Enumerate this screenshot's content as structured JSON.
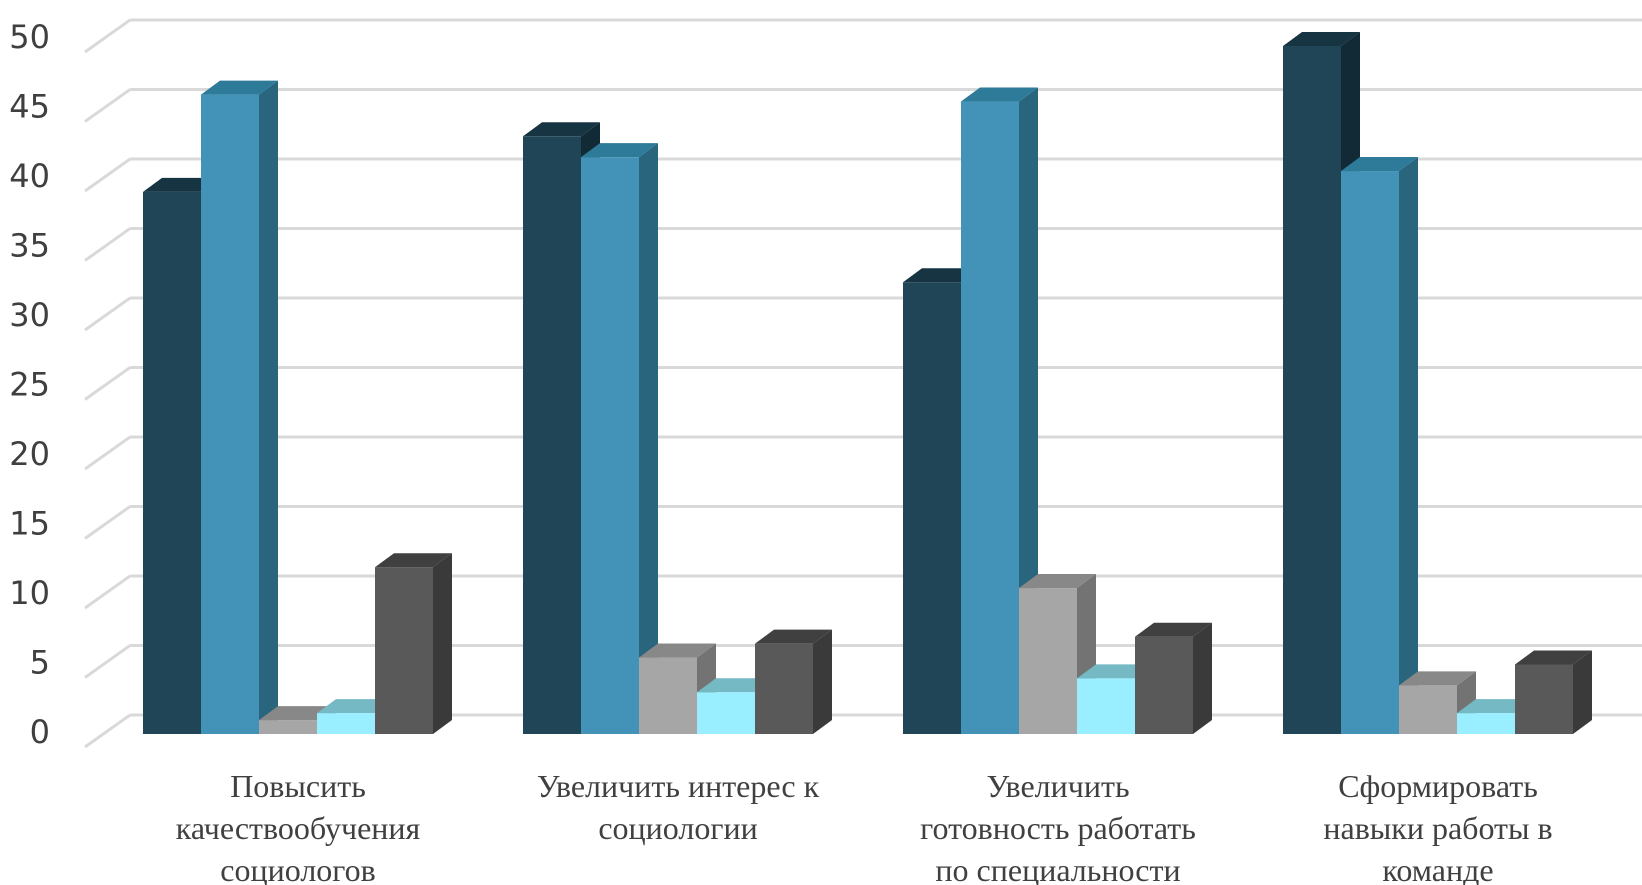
{
  "chart_data": {
    "type": "bar",
    "title": "",
    "xlabel": "",
    "ylabel": "",
    "ylim": [
      0,
      50
    ],
    "yticks": [
      0,
      5,
      10,
      15,
      20,
      25,
      30,
      35,
      40,
      45,
      50
    ],
    "grid": true,
    "legend": "none",
    "categories": [
      [
        "Повысить",
        "качествообучения",
        "социологов"
      ],
      [
        "Увеличить интерес к",
        "социологии"
      ],
      [
        "Увеличить",
        "готовность работать",
        "по специальности"
      ],
      [
        "Сформировать",
        "навыки работы в",
        "команде"
      ]
    ],
    "series": [
      {
        "values": [
          39,
          43,
          32.5,
          49.5
        ],
        "color": "#1f4556",
        "top": "#163441",
        "side": "#122a35"
      },
      {
        "values": [
          46,
          41.5,
          45.5,
          40.5
        ],
        "color": "#4393b9",
        "top": "#2e7a99",
        "side": "#29657d"
      },
      {
        "values": [
          1,
          5.5,
          10.5,
          3.5
        ],
        "color": "#a6a6a6",
        "top": "#888888",
        "side": "#737373"
      },
      {
        "values": [
          1.5,
          3,
          4,
          1.5
        ],
        "color": "#99eeff",
        "top": "#75b9c4",
        "side": "#6aa9b3"
      },
      {
        "values": [
          12,
          6.5,
          7,
          5
        ],
        "color": "#595959",
        "top": "#404040",
        "side": "#3a3a3a"
      }
    ]
  }
}
